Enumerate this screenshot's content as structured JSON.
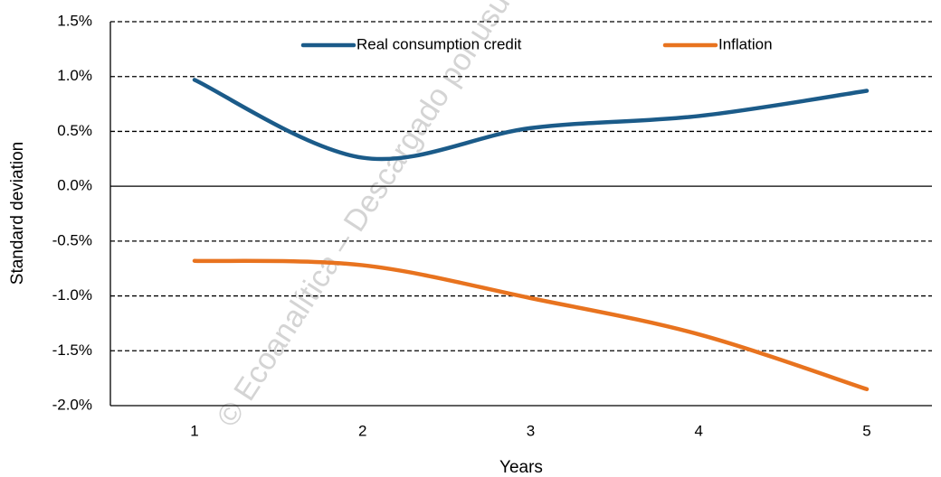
{
  "chart_data": {
    "type": "line",
    "x_label": "Years",
    "y_label": "Standard deviation",
    "watermark": "© Ecoanalítica – Descargado por usua",
    "categories": [
      "1",
      "2",
      "3",
      "4",
      "5"
    ],
    "series": [
      {
        "name": "Real consumption credit",
        "color": "#1b5b89",
        "values": [
          0.97,
          0.26,
          0.53,
          0.64,
          0.87
        ]
      },
      {
        "name": "Inflation",
        "color": "#e8731f",
        "values": [
          -0.68,
          -0.72,
          -1.02,
          -1.35,
          -1.85
        ]
      }
    ],
    "ylim": [
      -2.0,
      1.5
    ],
    "yticks": [
      {
        "value": -2.0,
        "label": "-2.0%"
      },
      {
        "value": -1.5,
        "label": "-1.5%"
      },
      {
        "value": -1.0,
        "label": "-1.0%"
      },
      {
        "value": -0.5,
        "label": "-0.5%"
      },
      {
        "value": 0,
        "label": "0.0%"
      },
      {
        "value": 0.5,
        "label": "0.5%"
      },
      {
        "value": 1.0,
        "label": "1.0%"
      },
      {
        "value": 1.5,
        "label": "1.5%"
      }
    ],
    "grid": true,
    "legend": "top"
  }
}
